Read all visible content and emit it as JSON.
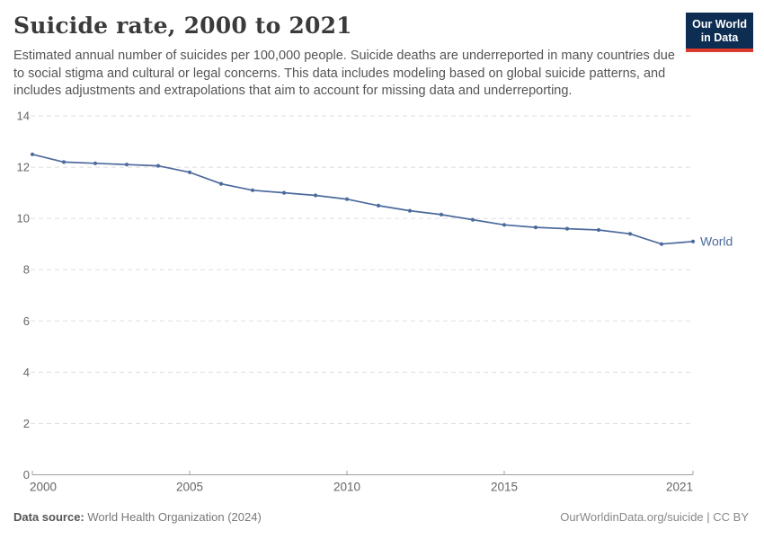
{
  "header": {
    "title": "Suicide rate, 2000 to 2021",
    "subtitle": "Estimated annual number of suicides per 100,000 people. Suicide deaths are underreported in many countries due to social stigma and cultural or legal concerns. This data includes modeling based on global suicide patterns, and includes adjustments and extrapolations that aim to account for missing data and underreporting.",
    "logo": {
      "line1": "Our World",
      "line2": "in Data",
      "bg_color": "#0d2d52",
      "bar_color": "#dc3a2a"
    }
  },
  "chart_data": {
    "type": "line",
    "title": "Suicide rate, 2000 to 2021",
    "xlabel": "",
    "ylabel": "",
    "xlim": [
      2000,
      2021
    ],
    "ylim": [
      0,
      14
    ],
    "x_ticks": [
      2000,
      2005,
      2010,
      2015,
      2021
    ],
    "y_ticks": [
      0,
      2,
      4,
      6,
      8,
      10,
      12,
      14
    ],
    "grid": "horizontal-dashed",
    "legend_position": "end-of-line-label",
    "x": [
      2000,
      2001,
      2002,
      2003,
      2004,
      2005,
      2006,
      2007,
      2008,
      2009,
      2010,
      2011,
      2012,
      2013,
      2014,
      2015,
      2016,
      2017,
      2018,
      2019,
      2020,
      2021
    ],
    "series": [
      {
        "name": "World",
        "color": "#4c6a9c",
        "values": [
          12.5,
          12.2,
          12.15,
          12.1,
          12.05,
          11.8,
          11.35,
          11.1,
          11.0,
          10.9,
          10.75,
          10.5,
          10.3,
          10.15,
          9.95,
          9.75,
          9.65,
          9.6,
          9.55,
          9.4,
          9.0,
          9.1
        ]
      }
    ]
  },
  "footer": {
    "source_label": "Data source:",
    "source_text": " World Health Organization (2024)",
    "credit": "OurWorldinData.org/suicide | CC BY"
  },
  "colors": {
    "grid": "#dddddd",
    "axis": "#a0a0a0",
    "tick_label": "#666666",
    "line": "#4c6a9c"
  }
}
